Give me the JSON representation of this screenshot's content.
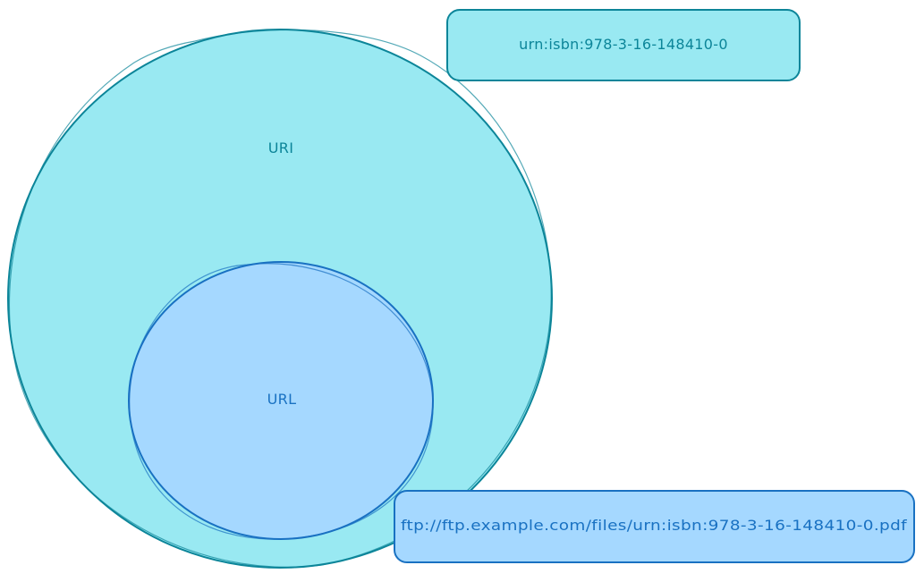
{
  "diagram": {
    "colors": {
      "uri_fill": "#99e9f2",
      "uri_stroke": "#0c8599",
      "url_fill": "#a5d8ff",
      "url_stroke": "#1971c2",
      "uri_text": "#0c8599",
      "url_text": "#1971c2"
    },
    "uri_set": {
      "label": "URI"
    },
    "url_set": {
      "label": "URL"
    },
    "urn_example": {
      "text": "urn:isbn:978-3-16-148410-0"
    },
    "url_example": {
      "text": "ftp://ftp.example.com/files/urn:isbn:978-3-16-148410-0.pdf"
    }
  }
}
